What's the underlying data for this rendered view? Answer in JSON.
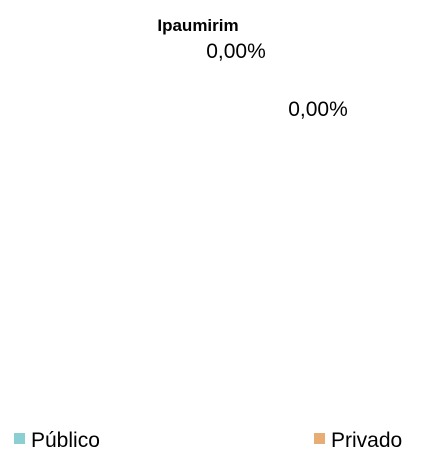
{
  "chart_data": {
    "type": "pie",
    "title": "Ipaumirim",
    "categories": [
      "Público",
      "Privado"
    ],
    "values": [
      0,
      0
    ],
    "value_labels": [
      "0,00%",
      "0,00%"
    ],
    "colors": [
      "#8ccfd3",
      "#e8ad74"
    ],
    "legend": "bottom"
  }
}
